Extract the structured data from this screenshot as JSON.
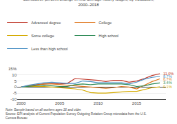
{
  "chart_data": {
    "type": "line",
    "title": "Cumulative percent change in real average hourly wages, by education,",
    "subtitle": "2000–2018",
    "note": "Note: Sample based on all workers ages 16 and older.",
    "source": [
      "Source: EPI analysis of Current Population Survey Outgoing Rotation Group microdata from the U.S.",
      "Census Bureau"
    ],
    "x": [
      2000,
      2001,
      2002,
      2003,
      2004,
      2005,
      2006,
      2007,
      2008,
      2009,
      2010,
      2011,
      2012,
      2013,
      2014,
      2015,
      2016,
      2017,
      2018
    ],
    "series": [
      {
        "name": "Advanced degree",
        "color": "#c0392b",
        "values": [
          0,
          1.2,
          2.0,
          2.5,
          3.0,
          2.5,
          3.0,
          7.0,
          6.5,
          6.0,
          5.5,
          4.5,
          5.5,
          5.5,
          4.0,
          5.0,
          7.0,
          9.5,
          11.0
        ]
      },
      {
        "name": "College",
        "color": "#e07820",
        "values": [
          0,
          1.0,
          1.5,
          2.5,
          2.5,
          2.0,
          1.5,
          1.0,
          0.5,
          0.0,
          -0.5,
          -1.0,
          -0.5,
          0.5,
          0.0,
          -1.5,
          1.5,
          4.5,
          6.7
        ]
      },
      {
        "name": "Some college",
        "color": "#d4aa00",
        "values": [
          0,
          0.5,
          0.5,
          0.5,
          0.0,
          -0.5,
          -1.0,
          -1.5,
          -2.5,
          -4.5,
          -5.0,
          -5.0,
          -4.5,
          -4.0,
          -3.5,
          -3.5,
          -2.0,
          -0.5,
          0.1
        ]
      },
      {
        "name": "High school",
        "color": "#2e8b57",
        "values": [
          0,
          0.8,
          1.2,
          1.5,
          1.0,
          0.5,
          0.5,
          2.0,
          2.5,
          2.0,
          2.5,
          2.5,
          2.5,
          2.5,
          2.0,
          0.5,
          1.0,
          2.5,
          3.4
        ]
      },
      {
        "name": "Less than high school",
        "color": "#4a90c4",
        "values": [
          0,
          1.5,
          2.5,
          3.5,
          4.0,
          3.5,
          3.0,
          3.0,
          5.0,
          4.5,
          3.5,
          3.5,
          3.5,
          3.5,
          2.5,
          4.0,
          6.5,
          8.0,
          8.7
        ]
      }
    ],
    "annotations": [
      {
        "text": "11.0%",
        "x": 2018,
        "y": 11.0,
        "color": "#c0392b"
      },
      {
        "text": "8.7%",
        "x": 2018,
        "y": 8.7,
        "color": "#4a90c4"
      },
      {
        "text": "6.7%",
        "x": 2018,
        "y": 6.7,
        "color": "#e07820"
      },
      {
        "text": "3.4%",
        "x": 2018,
        "y": 3.4,
        "color": "#2e8b57"
      },
      {
        "text": "0.1%",
        "x": 2018,
        "y": 0.1,
        "color": "#d4aa00"
      }
    ],
    "xlim": [
      1999.5,
      2018.8
    ],
    "xticks": [
      2000,
      2005,
      2010,
      2015
    ],
    "ylim": [
      -10,
      15
    ],
    "yticks": [
      -10,
      -5,
      0,
      5,
      10,
      {
        "value": 15,
        "label": "15%"
      }
    ],
    "grid": "y",
    "legend": "top"
  }
}
